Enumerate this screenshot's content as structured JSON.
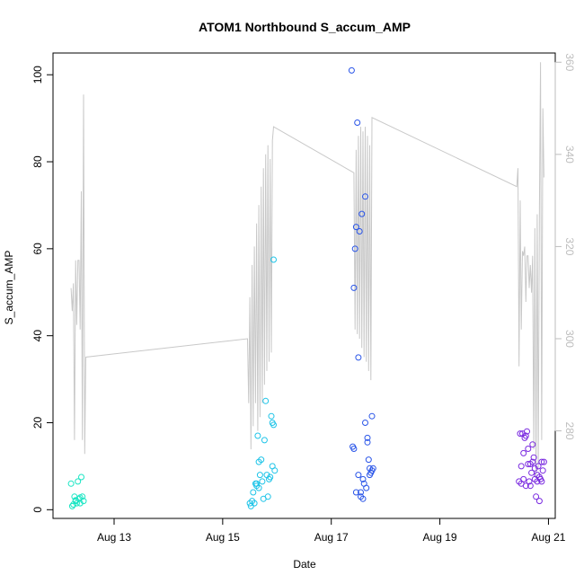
{
  "chart_data": {
    "type": "scatter",
    "title": "ATOM1 Northbound S_accum_AMP",
    "xlabel": "Date",
    "ylabel": "S_accum_AMP",
    "xlim": [
      "2024-08-11T21:00",
      "2024-08-21T03:00"
    ],
    "ylim": [
      -2,
      105
    ],
    "y2lim": [
      261,
      362
    ],
    "x_ticks": [
      {
        "label": "Aug 13",
        "value": "2024-08-13T00:00"
      },
      {
        "label": "Aug 15",
        "value": "2024-08-15T00:00"
      },
      {
        "label": "Aug 17",
        "value": "2024-08-17T00:00"
      },
      {
        "label": "Aug 19",
        "value": "2024-08-19T00:00"
      },
      {
        "label": "Aug 21",
        "value": "2024-08-21T00:00"
      }
    ],
    "y_ticks": [
      0,
      20,
      40,
      60,
      80,
      100
    ],
    "y2_ticks": [
      280,
      300,
      320,
      340,
      360
    ],
    "grid": false,
    "colors": {
      "right_axis": "#bdbdbd",
      "line": "#c8c8c8"
    },
    "series": [
      {
        "color": "#19e5c3",
        "points": [
          [
            "2024-08-12T05:00",
            6
          ],
          [
            "2024-08-12T05:30",
            0.8
          ],
          [
            "2024-08-12T06:00",
            1.2
          ],
          [
            "2024-08-12T06:30",
            3
          ],
          [
            "2024-08-12T07:00",
            2
          ],
          [
            "2024-08-12T07:30",
            1.5
          ],
          [
            "2024-08-12T08:00",
            6.5
          ],
          [
            "2024-08-12T08:30",
            2.5
          ],
          [
            "2024-08-12T09:00",
            1.5
          ],
          [
            "2024-08-12T09:30",
            7.5
          ],
          [
            "2024-08-12T10:00",
            3
          ],
          [
            "2024-08-12T10:30",
            2
          ],
          [
            "2024-08-12T07:00",
            2.2
          ],
          [
            "2024-08-12T09:00",
            2.8
          ]
        ]
      },
      {
        "color": "#1ec4e8",
        "points": [
          [
            "2024-08-15T12:00",
            1.5
          ],
          [
            "2024-08-15T12:30",
            0.8
          ],
          [
            "2024-08-15T13:00",
            2
          ],
          [
            "2024-08-15T13:30",
            4
          ],
          [
            "2024-08-15T14:00",
            1.5
          ],
          [
            "2024-08-15T14:30",
            6
          ],
          [
            "2024-08-15T15:00",
            5.5
          ],
          [
            "2024-08-15T15:30",
            17
          ],
          [
            "2024-08-15T16:00",
            11
          ],
          [
            "2024-08-15T16:30",
            8
          ],
          [
            "2024-08-15T17:00",
            11.5
          ],
          [
            "2024-08-15T17:30",
            6.5
          ],
          [
            "2024-08-15T18:00",
            2.5
          ],
          [
            "2024-08-15T18:30",
            16
          ],
          [
            "2024-08-15T19:00",
            25
          ],
          [
            "2024-08-15T19:30",
            8
          ],
          [
            "2024-08-15T20:00",
            3
          ],
          [
            "2024-08-15T20:30",
            7
          ],
          [
            "2024-08-15T21:00",
            7.5
          ],
          [
            "2024-08-15T21:30",
            21.5
          ],
          [
            "2024-08-15T22:00",
            10
          ],
          [
            "2024-08-15T22:00",
            20
          ],
          [
            "2024-08-15T22:30",
            19.5
          ],
          [
            "2024-08-15T22:30",
            57.5
          ],
          [
            "2024-08-15T23:00",
            9
          ],
          [
            "2024-08-15T15:00",
            6
          ],
          [
            "2024-08-15T16:00",
            5
          ]
        ]
      },
      {
        "color": "#2a55e8",
        "points": [
          [
            "2024-08-17T09:00",
            101
          ],
          [
            "2024-08-17T09:30",
            14.5
          ],
          [
            "2024-08-17T10:00",
            14
          ],
          [
            "2024-08-17T10:00",
            51
          ],
          [
            "2024-08-17T10:30",
            60
          ],
          [
            "2024-08-17T11:00",
            65
          ],
          [
            "2024-08-17T11:00",
            4
          ],
          [
            "2024-08-17T11:30",
            89
          ],
          [
            "2024-08-17T12:00",
            35
          ],
          [
            "2024-08-17T12:00",
            8
          ],
          [
            "2024-08-17T12:30",
            64
          ],
          [
            "2024-08-17T13:00",
            3
          ],
          [
            "2024-08-17T13:00",
            4
          ],
          [
            "2024-08-17T13:30",
            68
          ],
          [
            "2024-08-17T14:00",
            2.5
          ],
          [
            "2024-08-17T14:00",
            7
          ],
          [
            "2024-08-17T14:30",
            6
          ],
          [
            "2024-08-17T15:00",
            72
          ],
          [
            "2024-08-17T15:00",
            20
          ],
          [
            "2024-08-17T15:30",
            5
          ],
          [
            "2024-08-17T16:00",
            16.5
          ],
          [
            "2024-08-17T16:00",
            15.5
          ],
          [
            "2024-08-17T16:30",
            11.5
          ],
          [
            "2024-08-17T17:00",
            9.5
          ],
          [
            "2024-08-17T17:30",
            8.5
          ],
          [
            "2024-08-17T18:00",
            21.5
          ],
          [
            "2024-08-17T18:00",
            9
          ],
          [
            "2024-08-17T18:30",
            9.5
          ],
          [
            "2024-08-17T17:00",
            8
          ]
        ]
      },
      {
        "color": "#7a2ae0",
        "points": [
          [
            "2024-08-20T11:00",
            6.5
          ],
          [
            "2024-08-20T11:30",
            17.5
          ],
          [
            "2024-08-20T12:00",
            10
          ],
          [
            "2024-08-20T12:00",
            6
          ],
          [
            "2024-08-20T12:30",
            17.5
          ],
          [
            "2024-08-20T13:00",
            13
          ],
          [
            "2024-08-20T13:00",
            7
          ],
          [
            "2024-08-20T13:30",
            16.5
          ],
          [
            "2024-08-20T14:00",
            5.5
          ],
          [
            "2024-08-20T14:00",
            17
          ],
          [
            "2024-08-20T14:30",
            18
          ],
          [
            "2024-08-20T15:00",
            10.5
          ],
          [
            "2024-08-20T15:00",
            14
          ],
          [
            "2024-08-20T15:30",
            6.5
          ],
          [
            "2024-08-20T16:00",
            10.5
          ],
          [
            "2024-08-20T16:00",
            5.5
          ],
          [
            "2024-08-20T16:30",
            8.5
          ],
          [
            "2024-08-20T17:00",
            15
          ],
          [
            "2024-08-20T17:00",
            11
          ],
          [
            "2024-08-20T17:30",
            12
          ],
          [
            "2024-08-20T18:00",
            7
          ],
          [
            "2024-08-20T18:00",
            9.5
          ],
          [
            "2024-08-20T18:30",
            3
          ],
          [
            "2024-08-20T19:00",
            6.5
          ],
          [
            "2024-08-20T19:00",
            8
          ],
          [
            "2024-08-20T19:30",
            10
          ],
          [
            "2024-08-20T20:00",
            2
          ],
          [
            "2024-08-20T20:00",
            7.5
          ],
          [
            "2024-08-20T20:30",
            7
          ],
          [
            "2024-08-20T21:00",
            11
          ],
          [
            "2024-08-20T21:00",
            6.5
          ],
          [
            "2024-08-20T21:30",
            9
          ],
          [
            "2024-08-20T22:00",
            11
          ]
        ]
      }
    ],
    "line_series": {
      "axis": "right",
      "color": "#c8c8c8",
      "points": [
        [
          "2024-08-12T05:00",
          311
        ],
        [
          "2024-08-12T05:30",
          306
        ],
        [
          "2024-08-12T06:00",
          312
        ],
        [
          "2024-08-12T06:30",
          278
        ],
        [
          "2024-08-12T07:00",
          317
        ],
        [
          "2024-08-12T07:30",
          303
        ],
        [
          "2024-08-12T08:00",
          317
        ],
        [
          "2024-08-12T08:30",
          317
        ],
        [
          "2024-08-12T09:00",
          302
        ],
        [
          "2024-08-12T09:30",
          332
        ],
        [
          "2024-08-12T10:00",
          278
        ],
        [
          "2024-08-12T10:30",
          353
        ],
        [
          "2024-08-12T11:00",
          275
        ],
        [
          "2024-08-12T11:30",
          296
        ],
        [
          "2024-08-15T11:00",
          300
        ],
        [
          "2024-08-15T11:30",
          286
        ],
        [
          "2024-08-15T12:00",
          309
        ],
        [
          "2024-08-15T12:30",
          276
        ],
        [
          "2024-08-15T13:00",
          316
        ],
        [
          "2024-08-15T13:30",
          281
        ],
        [
          "2024-08-15T14:00",
          320
        ],
        [
          "2024-08-15T14:30",
          286
        ],
        [
          "2024-08-15T15:00",
          325
        ],
        [
          "2024-08-15T15:30",
          280
        ],
        [
          "2024-08-15T16:00",
          329
        ],
        [
          "2024-08-15T16:30",
          283
        ],
        [
          "2024-08-15T17:00",
          333
        ],
        [
          "2024-08-15T17:30",
          286
        ],
        [
          "2024-08-15T18:00",
          337
        ],
        [
          "2024-08-15T18:30",
          290
        ],
        [
          "2024-08-15T19:00",
          340
        ],
        [
          "2024-08-15T19:30",
          293
        ],
        [
          "2024-08-15T20:00",
          342
        ],
        [
          "2024-08-15T20:30",
          295
        ],
        [
          "2024-08-15T21:00",
          339
        ],
        [
          "2024-08-15T21:30",
          297
        ],
        [
          "2024-08-15T22:00",
          343
        ],
        [
          "2024-08-15T22:30",
          346
        ],
        [
          "2024-08-17T10:00",
          336
        ],
        [
          "2024-08-17T10:30",
          302
        ],
        [
          "2024-08-17T11:00",
          341
        ],
        [
          "2024-08-17T11:30",
          301
        ],
        [
          "2024-08-17T12:00",
          344
        ],
        [
          "2024-08-17T12:30",
          300
        ],
        [
          "2024-08-17T13:00",
          346
        ],
        [
          "2024-08-17T13:30",
          298
        ],
        [
          "2024-08-17T14:00",
          345
        ],
        [
          "2024-08-17T14:30",
          296
        ],
        [
          "2024-08-17T15:00",
          346
        ],
        [
          "2024-08-17T15:30",
          295
        ],
        [
          "2024-08-17T16:00",
          344
        ],
        [
          "2024-08-17T16:30",
          293
        ],
        [
          "2024-08-17T17:00",
          342
        ],
        [
          "2024-08-17T17:30",
          291
        ],
        [
          "2024-08-17T18:00",
          348
        ],
        [
          "2024-08-20T10:00",
          333
        ],
        [
          "2024-08-20T10:30",
          337
        ],
        [
          "2024-08-20T11:00",
          294
        ],
        [
          "2024-08-20T11:30",
          330
        ],
        [
          "2024-08-20T12:00",
          302
        ],
        [
          "2024-08-20T12:30",
          319
        ],
        [
          "2024-08-20T13:00",
          318
        ],
        [
          "2024-08-20T13:30",
          320
        ],
        [
          "2024-08-20T14:00",
          308
        ],
        [
          "2024-08-20T14:30",
          318
        ],
        [
          "2024-08-20T15:00",
          318
        ],
        [
          "2024-08-20T15:30",
          311
        ],
        [
          "2024-08-20T16:00",
          316
        ],
        [
          "2024-08-20T16:30",
          310
        ],
        [
          "2024-08-20T17:00",
          318
        ],
        [
          "2024-08-20T17:30",
          276
        ],
        [
          "2024-08-20T18:00",
          324
        ],
        [
          "2024-08-20T18:30",
          270
        ],
        [
          "2024-08-20T19:00",
          327
        ],
        [
          "2024-08-20T19:30",
          272
        ],
        [
          "2024-08-20T20:00",
          329
        ],
        [
          "2024-08-20T20:30",
          360
        ],
        [
          "2024-08-20T21:00",
          278
        ],
        [
          "2024-08-20T21:30",
          350
        ],
        [
          "2024-08-20T22:00",
          335
        ]
      ]
    }
  }
}
